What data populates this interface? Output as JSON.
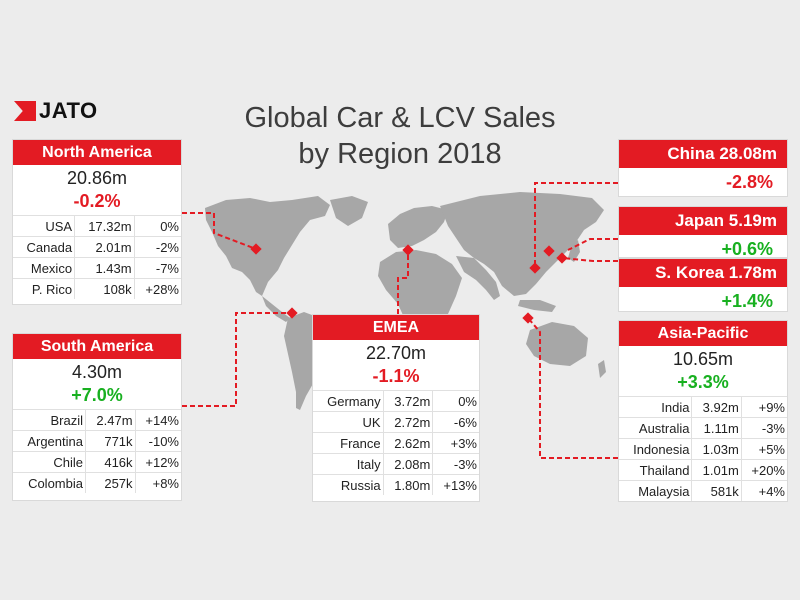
{
  "logo": {
    "text": "JATO"
  },
  "title": {
    "line1": "Global Car & LCV Sales",
    "line2": "by Region 2018"
  },
  "colors": {
    "accent": "#e31b23",
    "positive": "#18b020",
    "negative": "#e31b23",
    "map": "#a7a7a7",
    "background": "#ececec"
  },
  "regions": {
    "north_america": {
      "name": "North America",
      "total": "20.86m",
      "change": "-0.2%",
      "rows": [
        [
          "USA",
          "17.32m",
          "0%"
        ],
        [
          "Canada",
          "2.01m",
          "-2%"
        ],
        [
          "Mexico",
          "1.43m",
          "-7%"
        ],
        [
          "P. Rico",
          "108k",
          "+28%"
        ]
      ]
    },
    "south_america": {
      "name": "South America",
      "total": "4.30m",
      "change": "+7.0%",
      "rows": [
        [
          "Brazil",
          "2.47m",
          "+14%"
        ],
        [
          "Argentina",
          "771k",
          "-10%"
        ],
        [
          "Chile",
          "416k",
          "+12%"
        ],
        [
          "Colombia",
          "257k",
          "+8%"
        ]
      ]
    },
    "emea": {
      "name": "EMEA",
      "total": "22.70m",
      "change": "-1.1%",
      "rows": [
        [
          "Germany",
          "3.72m",
          "0%"
        ],
        [
          "UK",
          "2.72m",
          "-6%"
        ],
        [
          "France",
          "2.62m",
          "+3%"
        ],
        [
          "Italy",
          "2.08m",
          "-3%"
        ],
        [
          "Russia",
          "1.80m",
          "+13%"
        ]
      ]
    },
    "asia_pacific": {
      "name": "Asia-Pacific",
      "total": "10.65m",
      "change": "+3.3%",
      "rows": [
        [
          "India",
          "3.92m",
          "+9%"
        ],
        [
          "Australia",
          "1.11m",
          "-3%"
        ],
        [
          "Indonesia",
          "1.03m",
          "+5%"
        ],
        [
          "Thailand",
          "1.01m",
          "+20%"
        ],
        [
          "Malaysia",
          "581k",
          "+4%"
        ]
      ]
    },
    "china": {
      "label": "China 28.08m",
      "change": "-2.8%"
    },
    "japan": {
      "label": "Japan 5.19m",
      "change": "+0.6%"
    },
    "south_korea": {
      "label": "S. Korea 1.78m",
      "change": "+1.4%"
    }
  },
  "chart_data": {
    "type": "table",
    "title": "Global Car & LCV Sales by Region 2018",
    "series": [
      {
        "name": "North America",
        "total": "20.86m",
        "change": "-0.2%",
        "markets": [
          {
            "market": "USA",
            "sales": "17.32m",
            "change": "0%"
          },
          {
            "market": "Canada",
            "sales": "2.01m",
            "change": "-2%"
          },
          {
            "market": "Mexico",
            "sales": "1.43m",
            "change": "-7%"
          },
          {
            "market": "P. Rico",
            "sales": "108k",
            "change": "+28%"
          }
        ]
      },
      {
        "name": "South America",
        "total": "4.30m",
        "change": "+7.0%",
        "markets": [
          {
            "market": "Brazil",
            "sales": "2.47m",
            "change": "+14%"
          },
          {
            "market": "Argentina",
            "sales": "771k",
            "change": "-10%"
          },
          {
            "market": "Chile",
            "sales": "416k",
            "change": "+12%"
          },
          {
            "market": "Colombia",
            "sales": "257k",
            "change": "+8%"
          }
        ]
      },
      {
        "name": "EMEA",
        "total": "22.70m",
        "change": "-1.1%",
        "markets": [
          {
            "market": "Germany",
            "sales": "3.72m",
            "change": "0%"
          },
          {
            "market": "UK",
            "sales": "2.72m",
            "change": "-6%"
          },
          {
            "market": "France",
            "sales": "2.62m",
            "change": "+3%"
          },
          {
            "market": "Italy",
            "sales": "2.08m",
            "change": "-3%"
          },
          {
            "market": "Russia",
            "sales": "1.80m",
            "change": "+13%"
          }
        ]
      },
      {
        "name": "Asia-Pacific",
        "total": "10.65m",
        "change": "+3.3%",
        "markets": [
          {
            "market": "India",
            "sales": "3.92m",
            "change": "+9%"
          },
          {
            "market": "Australia",
            "sales": "1.11m",
            "change": "-3%"
          },
          {
            "market": "Indonesia",
            "sales": "1.03m",
            "change": "+5%"
          },
          {
            "market": "Thailand",
            "sales": "1.01m",
            "change": "+20%"
          },
          {
            "market": "Malaysia",
            "sales": "581k",
            "change": "+4%"
          }
        ]
      },
      {
        "name": "China",
        "total": "28.08m",
        "change": "-2.8%"
      },
      {
        "name": "Japan",
        "total": "5.19m",
        "change": "+0.6%"
      },
      {
        "name": "S. Korea",
        "total": "1.78m",
        "change": "+1.4%"
      }
    ]
  }
}
